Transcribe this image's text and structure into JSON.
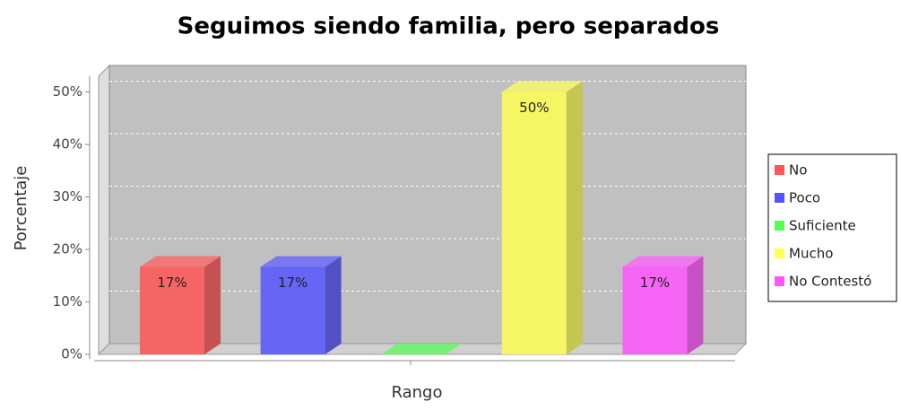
{
  "chart_data": {
    "type": "bar3d",
    "title": "Seguimos siendo familia, pero separados",
    "x_label": "Rango",
    "y_label": "Porcentaje",
    "categories": [
      null
    ],
    "series": [
      {
        "name": "No",
        "color": "#ff5555",
        "values": [
          16.67
        ],
        "value_labels": [
          "17%"
        ]
      },
      {
        "name": "Poco",
        "color": "#5555ff",
        "values": [
          16.67
        ],
        "value_labels": [
          "17%"
        ]
      },
      {
        "name": "Suficiente",
        "color": "#55ff55",
        "values": [
          0
        ],
        "value_labels": [
          null
        ]
      },
      {
        "name": "Mucho",
        "color": "#ffff55",
        "values": [
          50
        ],
        "value_labels": [
          "50%"
        ]
      },
      {
        "name": "No Contestó",
        "color": "#ff55ff",
        "values": [
          16.67
        ],
        "value_labels": [
          "17%"
        ]
      }
    ],
    "ylim": [
      0,
      53
    ],
    "yticks": [
      {
        "value": 0,
        "label": "0%"
      },
      {
        "value": 10,
        "label": "10%"
      },
      {
        "value": 20,
        "label": "20%"
      },
      {
        "value": 30,
        "label": "30%"
      },
      {
        "value": 40,
        "label": "40%"
      },
      {
        "value": 50,
        "label": "50%"
      }
    ],
    "grid": true,
    "legend": "right"
  }
}
